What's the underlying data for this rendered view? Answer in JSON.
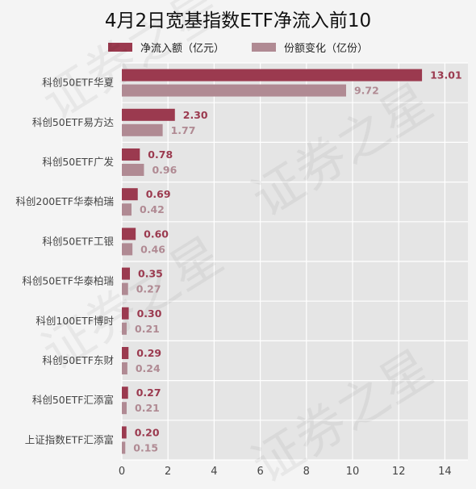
{
  "chart_data": {
    "type": "bar",
    "orientation": "horizontal",
    "title": "4月2日宽基指数ETF净流入前10",
    "categories": [
      "科创50ETF华夏",
      "科创50ETF易方达",
      "科创50ETF广发",
      "科创200ETF华泰柏瑞",
      "科创50ETF工银",
      "科创50ETF华泰柏瑞",
      "科创100ETF博时",
      "科创50ETF东财",
      "科创50ETF汇添富",
      "上证指数ETF汇添富"
    ],
    "series": [
      {
        "name": "净流入额（亿元）",
        "color": "#9b3a4f",
        "values": [
          13.01,
          2.3,
          0.78,
          0.69,
          0.6,
          0.35,
          0.3,
          0.29,
          0.27,
          0.2
        ],
        "labels": [
          "13.01",
          "2.30",
          "0.78",
          "0.69",
          "0.60",
          "0.35",
          "0.30",
          "0.29",
          "0.27",
          "0.20"
        ]
      },
      {
        "name": "份额变化（亿份）",
        "color": "#b08a93",
        "values": [
          9.72,
          1.77,
          0.96,
          0.42,
          0.46,
          0.27,
          0.21,
          0.24,
          0.21,
          0.15
        ],
        "labels": [
          "9.72",
          "1.77",
          "0.96",
          "0.42",
          "0.46",
          "0.27",
          "0.21",
          "0.24",
          "0.21",
          "0.15"
        ]
      }
    ],
    "x_ticks": [
      "0",
      "2",
      "4",
      "6",
      "8",
      "10",
      "12",
      "14"
    ],
    "xlim": [
      0,
      15
    ],
    "grid": true,
    "legend_position": "top-center",
    "plot_background": "#e5e5e5",
    "grid_color": "#ffffff",
    "watermark": "证券之星"
  }
}
